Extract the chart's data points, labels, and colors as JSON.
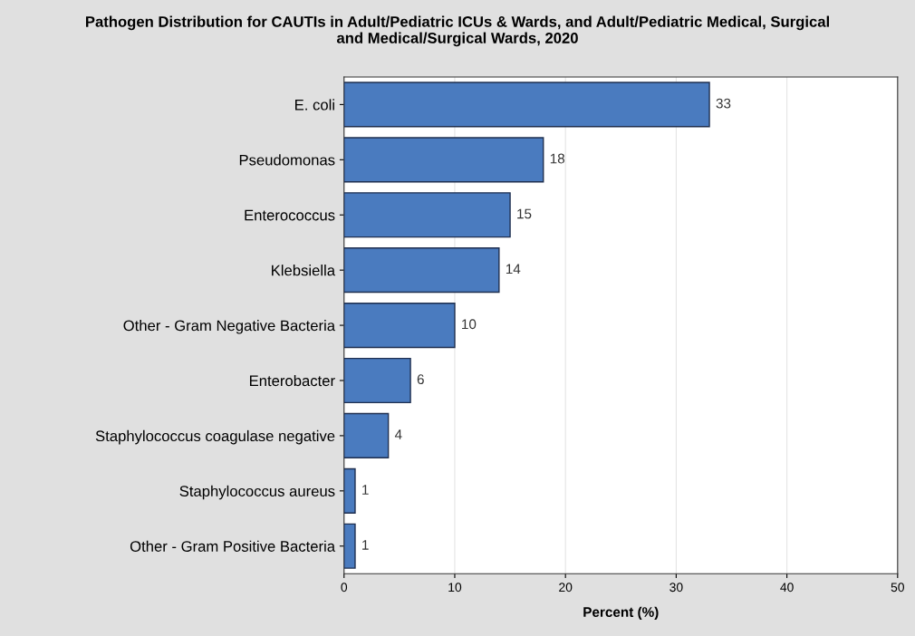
{
  "chart_data": {
    "type": "bar",
    "orientation": "horizontal",
    "title": "Pathogen Distribution for CAUTIs in Adult/Pediatric ICUs & Wards, and Adult/Pediatric Medical, Surgical\nand Medical/Surgical Wards, 2020",
    "xlabel": "Percent (%)",
    "categories": [
      "E. coli",
      "Pseudomonas",
      "Enterococcus",
      "Klebsiella",
      "Other - Gram Negative Bacteria",
      "Enterobacter",
      "Staphylococcus coagulase negative",
      "Staphylococcus aureus",
      "Other - Gram Positive Bacteria"
    ],
    "values": [
      33,
      18,
      15,
      14,
      10,
      6,
      4,
      1,
      1
    ],
    "color": "#4a7bbf",
    "xlim": [
      0,
      50
    ],
    "xticks": [
      0,
      10,
      20,
      30,
      40,
      50
    ],
    "grid": "x",
    "data_labels": true
  }
}
